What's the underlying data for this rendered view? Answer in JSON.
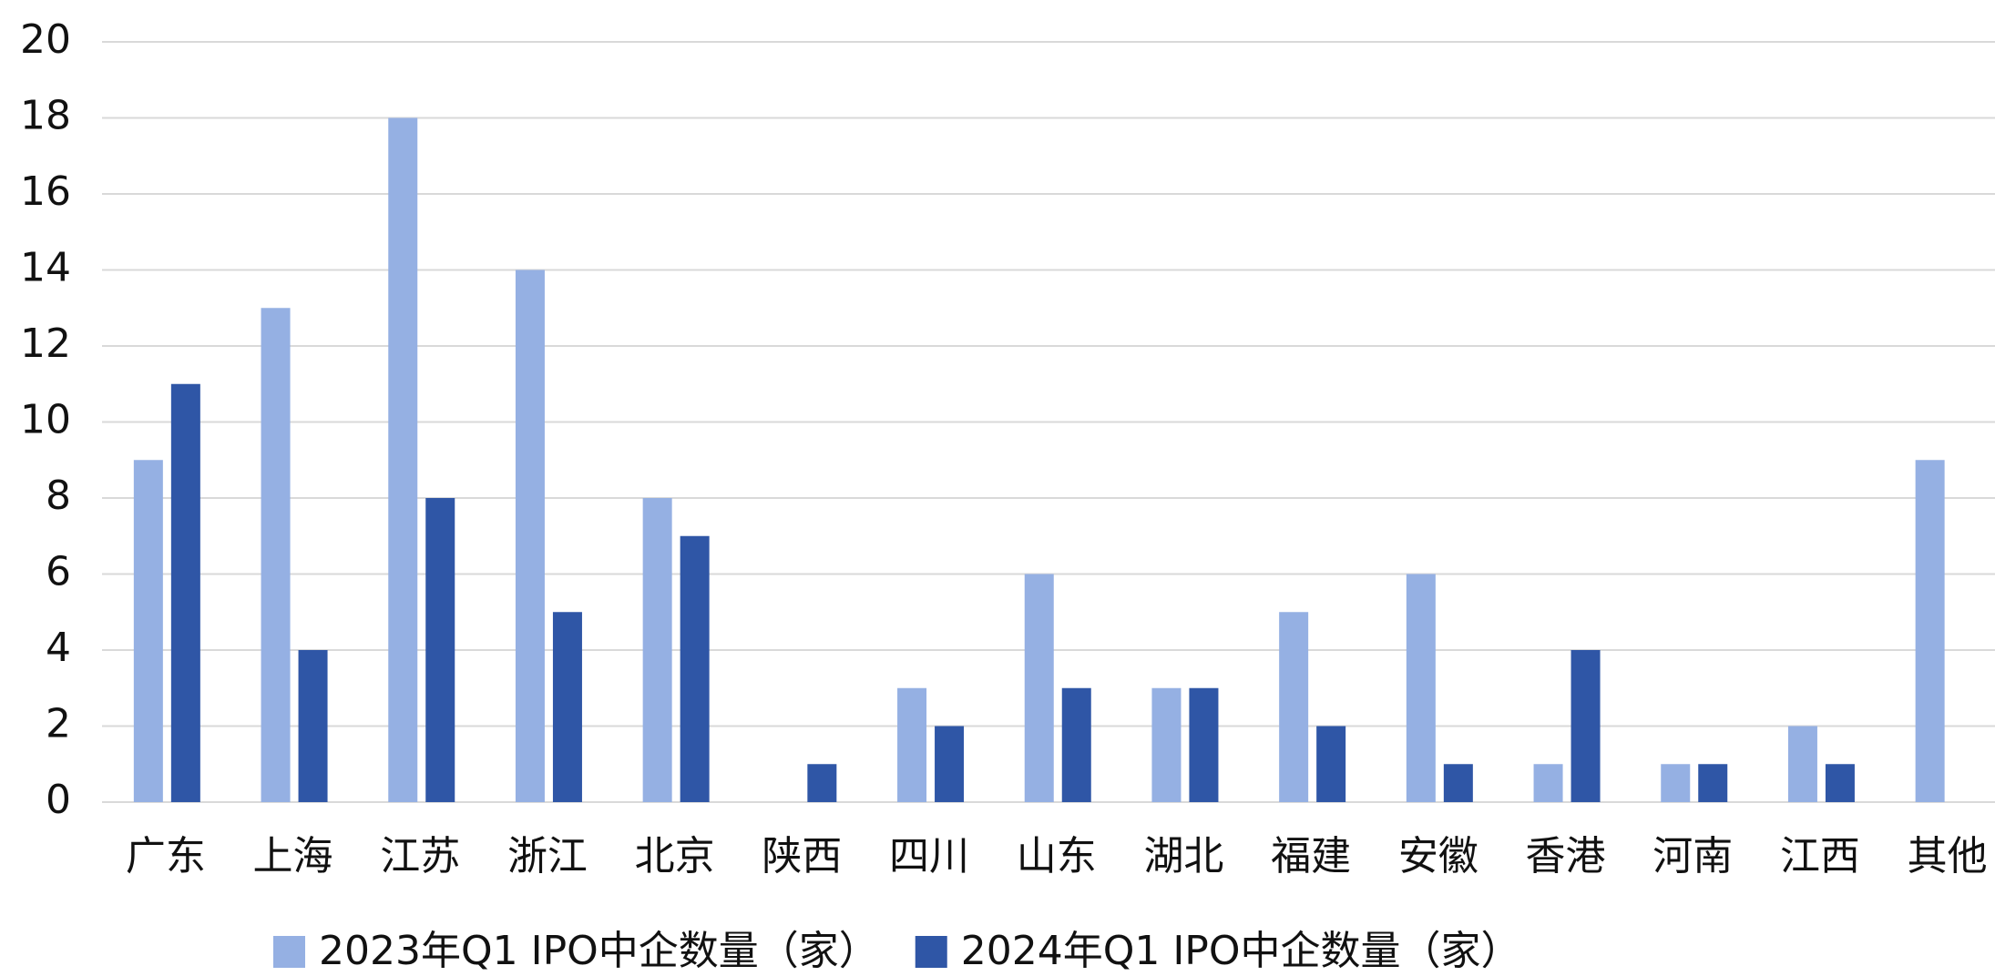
{
  "chart_data": {
    "type": "bar",
    "categories": [
      "广东",
      "上海",
      "江苏",
      "浙江",
      "北京",
      "陕西",
      "四川",
      "山东",
      "湖北",
      "福建",
      "安徽",
      "香港",
      "河南",
      "江西",
      "其他"
    ],
    "series": [
      {
        "name": "2023年Q1 IPO中企数量（家）",
        "color": "#95b0e3",
        "values": [
          9,
          13,
          18,
          14,
          8,
          0,
          3,
          6,
          3,
          5,
          6,
          1,
          1,
          2,
          9
        ]
      },
      {
        "name": "2024年Q1 IPO中企数量（家）",
        "color": "#2f56a6",
        "values": [
          11,
          4,
          8,
          5,
          7,
          1,
          2,
          3,
          3,
          2,
          1,
          4,
          1,
          1,
          0
        ]
      }
    ],
    "ylim": [
      0,
      20
    ],
    "yticks": [
      0,
      2,
      4,
      6,
      8,
      10,
      12,
      14,
      16,
      18,
      20
    ],
    "grid": true,
    "legend": "bottom"
  }
}
